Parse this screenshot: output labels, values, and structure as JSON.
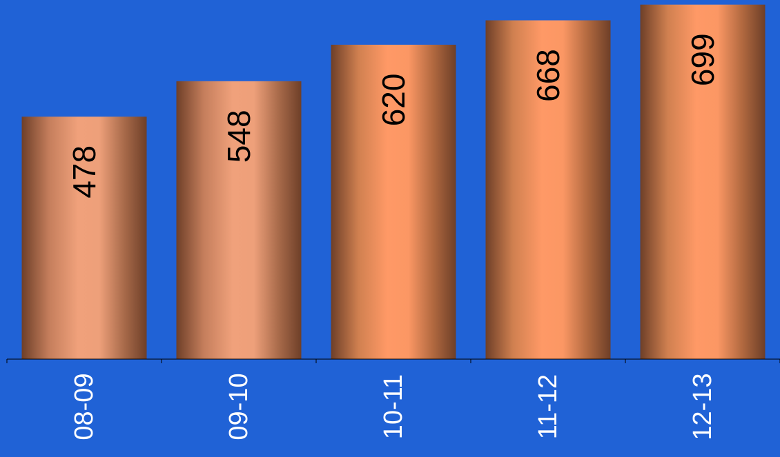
{
  "colors": {
    "background": "#2062d6",
    "axis": "#000000",
    "bar_light_1": "#f0a17b",
    "bar_light_2": "#ff9966",
    "bar_dark": "#6e3f28",
    "value_label": "#000000",
    "category_label": "#ffffff"
  },
  "chart_data": {
    "type": "bar",
    "categories": [
      "08-09",
      "09-10",
      "10-11",
      "11-12",
      "12-13"
    ],
    "values": [
      478,
      548,
      620,
      668,
      699
    ],
    "title": "",
    "xlabel": "",
    "ylabel": "",
    "ylim": [
      0,
      700
    ],
    "grid": false,
    "legend": "none",
    "data_labels": "rotated vertical inside bars",
    "category_labels": "rotated vertical below axis"
  }
}
